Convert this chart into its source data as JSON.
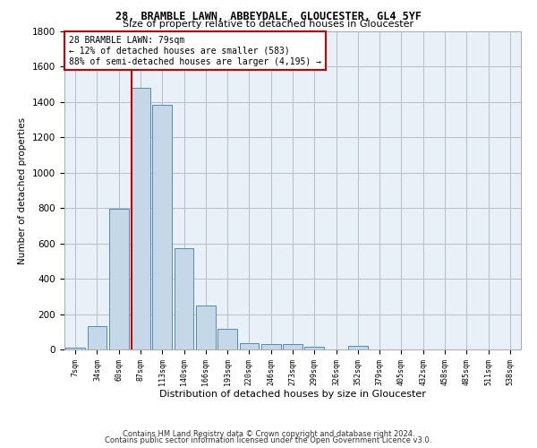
{
  "title1": "28, BRAMBLE LAWN, ABBEYDALE, GLOUCESTER, GL4 5YF",
  "title2": "Size of property relative to detached houses in Gloucester",
  "xlabel": "Distribution of detached houses by size in Gloucester",
  "ylabel": "Number of detached properties",
  "bin_labels": [
    "7sqm",
    "34sqm",
    "60sqm",
    "87sqm",
    "113sqm",
    "140sqm",
    "166sqm",
    "193sqm",
    "220sqm",
    "246sqm",
    "273sqm",
    "299sqm",
    "326sqm",
    "352sqm",
    "379sqm",
    "405sqm",
    "432sqm",
    "458sqm",
    "485sqm",
    "511sqm",
    "538sqm"
  ],
  "bar_heights": [
    10,
    130,
    795,
    1480,
    1385,
    575,
    250,
    115,
    35,
    30,
    30,
    15,
    0,
    20,
    0,
    0,
    0,
    0,
    0,
    0,
    0
  ],
  "bar_color": "#C5D8E8",
  "bar_edge_color": "#5588BB",
  "red_line_color": "#CC0000",
  "annotation_text": "28 BRAMBLE LAWN: 79sqm\n← 12% of detached houses are smaller (583)\n88% of semi-detached houses are larger (4,195) →",
  "annotation_box_color": "#FFFFFF",
  "annotation_box_edge_color": "#CC0000",
  "footer1": "Contains HM Land Registry data © Crown copyright and database right 2024.",
  "footer2": "Contains public sector information licensed under the Open Government Licence v3.0.",
  "ylim": [
    0,
    1800
  ],
  "yticks": [
    0,
    200,
    400,
    600,
    800,
    1000,
    1200,
    1400,
    1600,
    1800
  ],
  "background_color": "#FFFFFF",
  "plot_bg_color": "#E8F0F8",
  "grid_color": "#BBBBCC"
}
